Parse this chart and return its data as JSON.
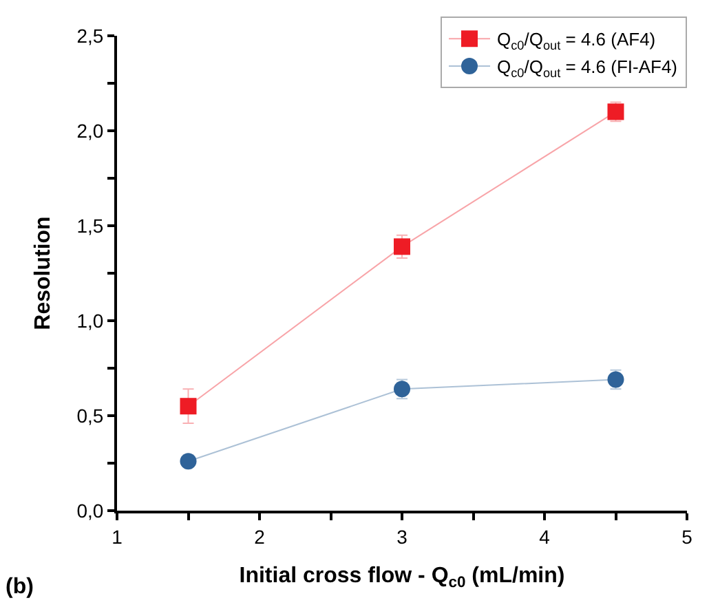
{
  "chart_data": {
    "type": "line",
    "xlabel": "Initial cross flow - Q$_{c0}$ (mL/min)",
    "ylabel": "Resolution",
    "x": [
      1.5,
      3,
      4.5
    ],
    "series": [
      {
        "name": "Q$_{c0}$/Q$_{out}$ = 4.6 (AF4)",
        "color": "#ee1c25",
        "marker": "square",
        "values": [
          0.55,
          1.39,
          2.1
        ],
        "errors": [
          0.09,
          0.06,
          0.05
        ]
      },
      {
        "name": "Q$_{c0}$/Q$_{out}$ = 4.6 (FI-AF4)",
        "color": "#2f6399",
        "marker": "circle",
        "values": [
          0.26,
          0.64,
          0.69
        ],
        "errors": [
          null,
          0.05,
          0.05
        ]
      }
    ],
    "xlim": [
      1,
      5
    ],
    "xticks": [
      1,
      {
        "value": 1.5,
        "label": null
      },
      2,
      {
        "value": 2.5,
        "label": null
      },
      3,
      {
        "value": 3.5,
        "label": null
      },
      4,
      {
        "value": 4.5,
        "label": null
      },
      5
    ],
    "ylim": [
      0,
      2.5
    ],
    "yticks": [
      {
        "value": 0,
        "label": "0,0"
      },
      {
        "value": 0.25,
        "label": null
      },
      {
        "value": 0.5,
        "label": "0,5"
      },
      {
        "value": 0.75,
        "label": null
      },
      {
        "value": 1,
        "label": "1,0"
      },
      {
        "value": 1.25,
        "label": null
      },
      {
        "value": 1.5,
        "label": "1,5"
      },
      {
        "value": 1.75,
        "label": null
      },
      {
        "value": 2,
        "label": "2,0"
      },
      {
        "value": 2.25,
        "label": null
      },
      {
        "value": 2.5,
        "label": "2,5"
      }
    ],
    "legend": "top right",
    "annotations": [
      "(b)"
    ]
  }
}
